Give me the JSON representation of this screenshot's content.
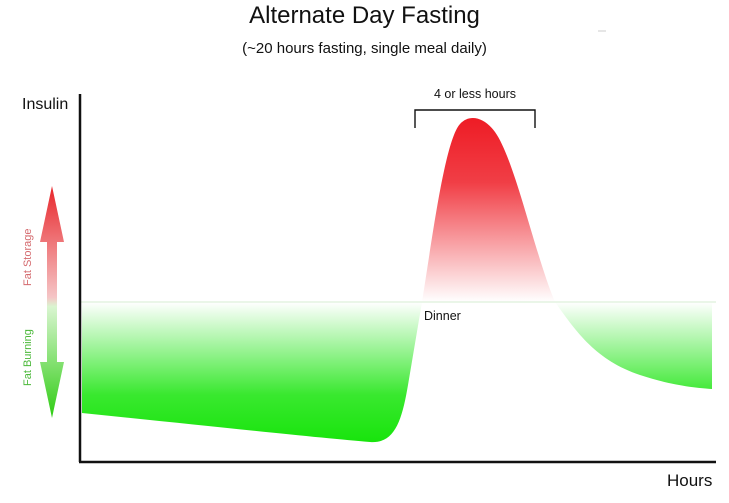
{
  "title": "Alternate Day Fasting",
  "subtitle": "(~20 hours fasting, single meal daily)",
  "axes": {
    "y_label": "Insulin",
    "x_label": "Hours"
  },
  "annotations": {
    "bracket_label": "4 or less hours",
    "meal_label": "Dinner"
  },
  "side_arrow": {
    "up_label": "Fat Storage",
    "down_label": "Fat Burning",
    "up_color": "#e8262b",
    "down_color": "#2ecc12"
  },
  "colors": {
    "storage": "#ee1c25",
    "burning": "#16e40a",
    "axis": "#111111"
  }
}
